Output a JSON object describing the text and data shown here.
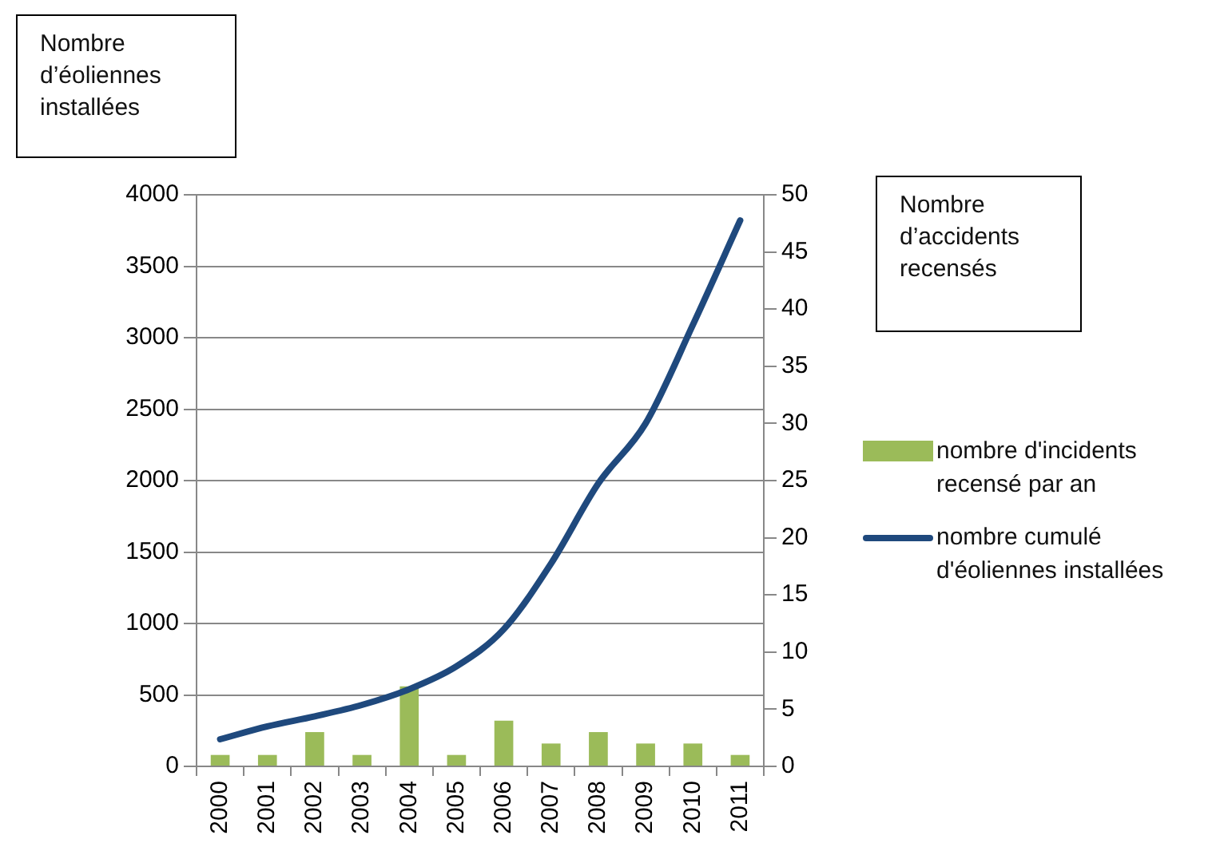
{
  "chart_data": {
    "type": "bar",
    "ylabel": "Nombre d’éoliennes installées",
    "y2label": "Nombre d’accidents recensés",
    "categories": [
      "2000",
      "2001",
      "2002",
      "2003",
      "2004",
      "2005",
      "2006",
      "2007",
      "2008",
      "2009",
      "2010",
      "2011"
    ],
    "series": [
      {
        "name": "nombre d'incidents recensé par an",
        "axis": "y2",
        "color": "#9bbb59",
        "values": [
          1,
          1,
          3,
          1,
          7,
          1,
          4,
          2,
          3,
          2,
          2,
          1
        ]
      },
      {
        "name": "nombre cumulé d'éoliennes installées",
        "type": "line",
        "color": "#1f497d",
        "values": [
          190,
          280,
          350,
          430,
          540,
          700,
          960,
          1420,
          1980,
          2400,
          3090,
          3820
        ]
      }
    ],
    "ylim": [
      0,
      4000
    ],
    "yticks": [
      0,
      500,
      1000,
      1500,
      2000,
      2500,
      3000,
      3500,
      4000
    ],
    "y2lim": [
      0,
      50
    ],
    "y2ticks": [
      0,
      5,
      10,
      15,
      20,
      25,
      30,
      35,
      40,
      45,
      50
    ],
    "grid": "y",
    "legend": "right",
    "marker": "none",
    "line_style": "solid"
  }
}
